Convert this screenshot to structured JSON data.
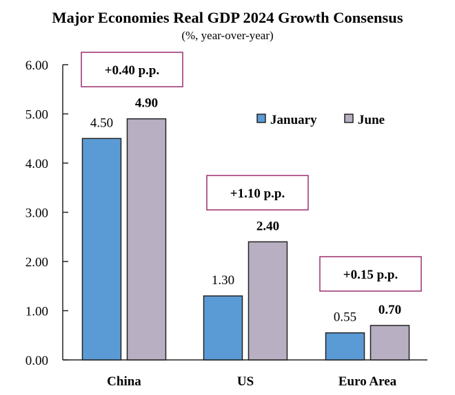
{
  "chart_data": {
    "type": "bar",
    "title": "Major Economies Real GDP 2024 Growth Consensus",
    "subtitle": "(%, year-over-year)",
    "xlabel": "",
    "ylabel": "",
    "ylim": [
      0,
      6
    ],
    "yticks": [
      0,
      1,
      2,
      3,
      4,
      5,
      6
    ],
    "ytick_labels": [
      "0.00",
      "1.00",
      "2.00",
      "3.00",
      "4.00",
      "5.00",
      "6.00"
    ],
    "grid": false,
    "categories": [
      "China",
      "US",
      "Euro Area"
    ],
    "series": [
      {
        "name": "January",
        "color": "#5B9BD5",
        "values": [
          4.5,
          1.3,
          0.55
        ],
        "labels": [
          "4.50",
          "1.30",
          "0.55"
        ]
      },
      {
        "name": "June",
        "color": "#B8AFC2",
        "values": [
          4.9,
          2.4,
          0.7
        ],
        "labels": [
          "4.90",
          "2.40",
          "0.70"
        ]
      }
    ],
    "annotations": [
      {
        "category": "China",
        "text": "+0.40 p.p."
      },
      {
        "category": "US",
        "text": "+1.10 p.p."
      },
      {
        "category": "Euro Area",
        "text": "+0.15 p.p."
      }
    ],
    "annotation_border_color": "#9B2D6F",
    "legend": {
      "position": "top-right",
      "entries": [
        "January",
        "June"
      ]
    }
  }
}
